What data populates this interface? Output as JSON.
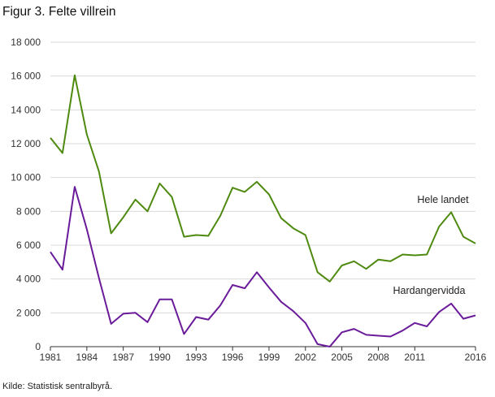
{
  "title": "Figur 3. Felte villrein",
  "source": "Kilde: Statistisk sentralbyrå.",
  "chart_data": {
    "type": "line",
    "title": "Figur 3. Felte villrein",
    "xlabel": "",
    "ylabel": "",
    "x": [
      1981,
      1982,
      1983,
      1984,
      1985,
      1986,
      1987,
      1988,
      1989,
      1990,
      1991,
      1992,
      1993,
      1994,
      1995,
      1996,
      1997,
      1998,
      1999,
      2000,
      2001,
      2002,
      2003,
      2004,
      2005,
      2006,
      2007,
      2008,
      2009,
      2010,
      2011,
      2012,
      2013,
      2014,
      2015,
      2016
    ],
    "xlim": [
      1981,
      2016
    ],
    "ylim": [
      0,
      18000
    ],
    "xticks": [
      1981,
      1984,
      1987,
      1990,
      1993,
      1996,
      1999,
      2002,
      2005,
      2008,
      2011,
      2016
    ],
    "xtick_labels": [
      "1981",
      "1984",
      "1987",
      "1990",
      "1993",
      "1996",
      "1999",
      "2002",
      "2005",
      "2008",
      "2011",
      "2016"
    ],
    "yticks": [
      0,
      2000,
      4000,
      6000,
      8000,
      10000,
      12000,
      14000,
      16000,
      18000
    ],
    "ytick_labels": [
      "0",
      "2 000",
      "4 000",
      "6 000",
      "8 000",
      "10 000",
      "12 000",
      "14 000",
      "16 000",
      "18 000"
    ],
    "grid": "horizontal",
    "series": [
      {
        "name": "Hele landet",
        "color": "#4f8a10",
        "values": [
          12350,
          11450,
          16050,
          12550,
          10350,
          6700,
          7650,
          8700,
          8000,
          9650,
          8850,
          6500,
          6600,
          6550,
          7750,
          9400,
          9150,
          9750,
          9000,
          7600,
          7000,
          6600,
          4400,
          3850,
          4800,
          5050,
          4600,
          5150,
          5050,
          5450,
          5400,
          5450,
          7100,
          7950,
          6500,
          6100
        ]
      },
      {
        "name": "Hardangervidda",
        "color": "#6a1b9a",
        "values": [
          5600,
          4550,
          9450,
          6950,
          4050,
          1350,
          1950,
          2000,
          1450,
          2800,
          2800,
          750,
          1750,
          1600,
          2450,
          3650,
          3450,
          4400,
          3500,
          2650,
          2100,
          1400,
          150,
          0,
          850,
          1050,
          700,
          650,
          600,
          950,
          1400,
          1200,
          2050,
          2550,
          1650,
          1850
        ]
      }
    ]
  }
}
